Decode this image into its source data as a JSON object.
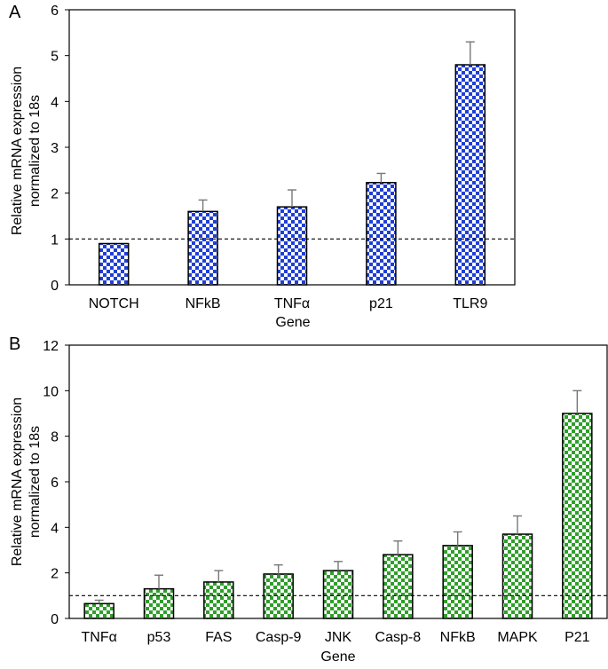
{
  "chart_data": [
    {
      "panel": "A",
      "type": "bar",
      "categories": [
        "NOTCH",
        "NFkB",
        "TNFα",
        "p21",
        "TLR9"
      ],
      "values": [
        0.9,
        1.6,
        1.7,
        2.23,
        4.8
      ],
      "errors": [
        0.0,
        0.25,
        0.37,
        0.2,
        0.5
      ],
      "ylim": [
        0,
        6
      ],
      "yticks": [
        "0",
        "1",
        "2",
        "3",
        "4",
        "5",
        "6"
      ],
      "ylabel_lines": [
        "Relative mRNA expression",
        "normalized to 18s"
      ],
      "xlabel": "Gene",
      "reference_line": 1,
      "bar_color": "#1f3fd6",
      "grid": false
    },
    {
      "panel": "B",
      "type": "bar",
      "categories": [
        "TNFα",
        "p53",
        "FAS",
        "Casp-9",
        "JNK",
        "Casp-8",
        "NFkB",
        "MAPK",
        "P21"
      ],
      "values": [
        0.65,
        1.3,
        1.6,
        1.95,
        2.1,
        2.8,
        3.2,
        3.7,
        9.0
      ],
      "errors": [
        0.15,
        0.6,
        0.5,
        0.4,
        0.4,
        0.6,
        0.6,
        0.8,
        1.0
      ],
      "ylim": [
        0,
        12
      ],
      "yticks": [
        "0",
        "2",
        "4",
        "6",
        "8",
        "10",
        "12"
      ],
      "ylabel_lines": [
        "Relative mRNA expression",
        "normalized to 18s"
      ],
      "xlabel": "Gene",
      "reference_line": 1,
      "bar_color": "#2f9e2a",
      "grid": false
    }
  ]
}
